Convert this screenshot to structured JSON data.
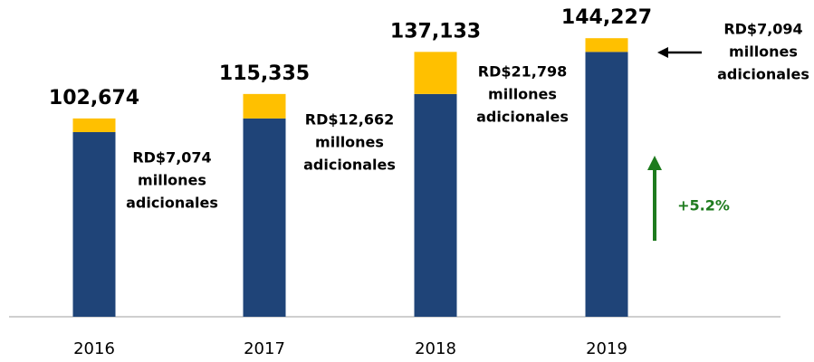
{
  "chart_data": {
    "type": "stacked_bar",
    "categories": [
      "2016",
      "2017",
      "2018",
      "2019"
    ],
    "series": [
      {
        "color": "#1f4478",
        "values": [
          95600,
          102673,
          115335,
          137133
        ]
      },
      {
        "color": "#ffc000",
        "values": [
          7074,
          12662,
          21798,
          7094
        ],
        "value_labels": [
          "RD$7,074",
          "RD$12,662",
          "RD$21,798",
          "RD$7,094"
        ]
      }
    ],
    "totals": [
      102674,
      115335,
      137133,
      144227
    ],
    "total_labels": [
      "102,674",
      "115,335",
      "137,133",
      "144,227"
    ],
    "label_lines": [
      "millones",
      "adicionales"
    ],
    "growth_annotation": {
      "text": "+5.2%",
      "color": "#1e7b1e"
    },
    "ylim": [
      0,
      164000
    ]
  }
}
